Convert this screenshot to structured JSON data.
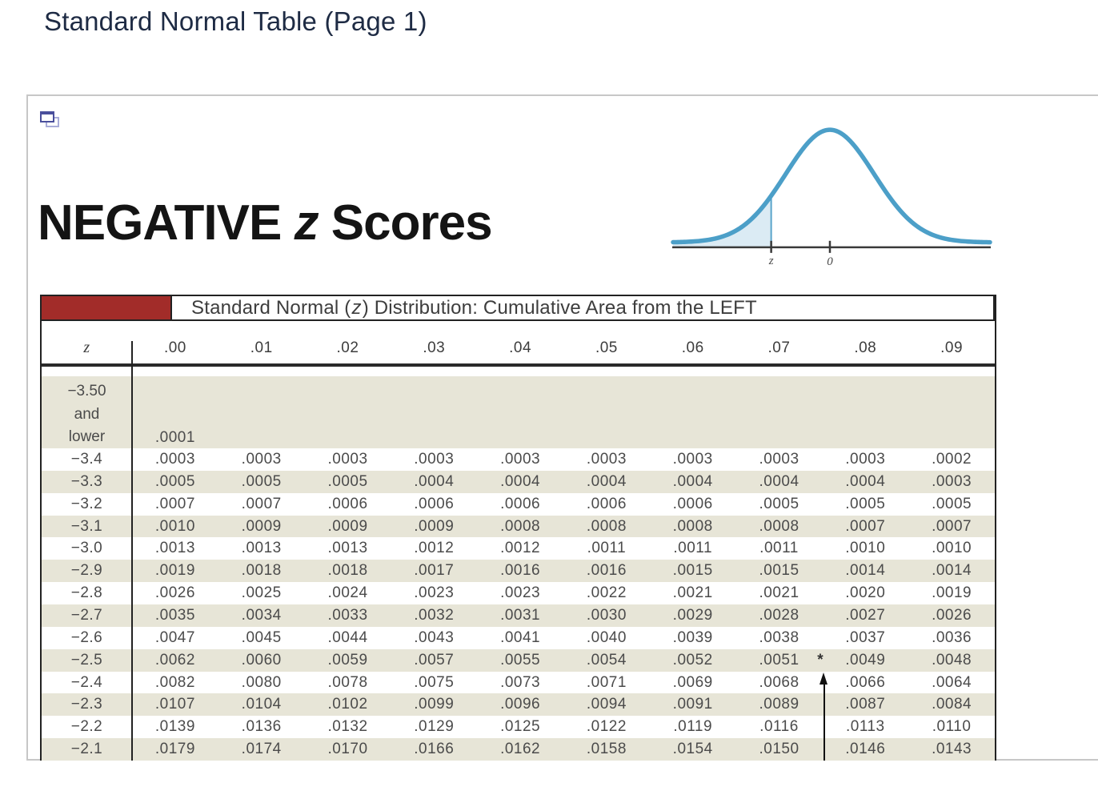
{
  "page": {
    "title": "Standard Normal Table (Page 1)"
  },
  "panel": {
    "icon_name": "popout-windows-icon",
    "heading": {
      "pre": "NEGATIVE ",
      "z": "z",
      "post": " Scores"
    },
    "curve": {
      "z_label": "z",
      "zero_label": "0",
      "curve_color": "#4C9FC8",
      "fill_color": "#DBEBF4",
      "axis_color": "#3a3a3a"
    },
    "table": {
      "title": {
        "pre": "Standard Normal (",
        "z": "z",
        "post": ") Distribution: Cumulative Area from the LEFT"
      },
      "corner_color": "#A22C29",
      "stripe_color": "#E7E5D7",
      "columns": [
        "z",
        ".00",
        ".01",
        ".02",
        ".03",
        ".04",
        ".05",
        ".06",
        ".07",
        ".08",
        ".09"
      ],
      "first_row": {
        "z_lines": [
          "−3.50",
          "and",
          "lower"
        ],
        "first_value": ".0001"
      },
      "rows": [
        {
          "z": "−3.4",
          "values": [
            ".0003",
            ".0003",
            ".0003",
            ".0003",
            ".0003",
            ".0003",
            ".0003",
            ".0003",
            ".0003",
            ".0002"
          ]
        },
        {
          "z": "−3.3",
          "values": [
            ".0005",
            ".0005",
            ".0005",
            ".0004",
            ".0004",
            ".0004",
            ".0004",
            ".0004",
            ".0004",
            ".0003"
          ]
        },
        {
          "z": "−3.2",
          "values": [
            ".0007",
            ".0007",
            ".0006",
            ".0006",
            ".0006",
            ".0006",
            ".0006",
            ".0005",
            ".0005",
            ".0005"
          ]
        },
        {
          "z": "−3.1",
          "values": [
            ".0010",
            ".0009",
            ".0009",
            ".0009",
            ".0008",
            ".0008",
            ".0008",
            ".0008",
            ".0007",
            ".0007"
          ]
        },
        {
          "z": "−3.0",
          "values": [
            ".0013",
            ".0013",
            ".0013",
            ".0012",
            ".0012",
            ".0011",
            ".0011",
            ".0011",
            ".0010",
            ".0010"
          ]
        },
        {
          "z": "−2.9",
          "values": [
            ".0019",
            ".0018",
            ".0018",
            ".0017",
            ".0016",
            ".0016",
            ".0015",
            ".0015",
            ".0014",
            ".0014"
          ]
        },
        {
          "z": "−2.8",
          "values": [
            ".0026",
            ".0025",
            ".0024",
            ".0023",
            ".0023",
            ".0022",
            ".0021",
            ".0021",
            ".0020",
            ".0019"
          ]
        },
        {
          "z": "−2.7",
          "values": [
            ".0035",
            ".0034",
            ".0033",
            ".0032",
            ".0031",
            ".0030",
            ".0029",
            ".0028",
            ".0027",
            ".0026"
          ]
        },
        {
          "z": "−2.6",
          "values": [
            ".0047",
            ".0045",
            ".0044",
            ".0043",
            ".0041",
            ".0040",
            ".0039",
            ".0038",
            ".0037",
            ".0036"
          ]
        },
        {
          "z": "−2.5",
          "values": [
            ".0062",
            ".0060",
            ".0059",
            ".0057",
            ".0055",
            ".0054",
            ".0052",
            ".0051",
            ".0049",
            ".0048"
          ]
        },
        {
          "z": "−2.4",
          "values": [
            ".0082",
            ".0080",
            ".0078",
            ".0075",
            ".0073",
            ".0071",
            ".0069",
            ".0068",
            ".0066",
            ".0064"
          ]
        },
        {
          "z": "−2.3",
          "values": [
            ".0107",
            ".0104",
            ".0102",
            ".0099",
            ".0096",
            ".0094",
            ".0091",
            ".0089",
            ".0087",
            ".0084"
          ]
        },
        {
          "z": "−2.2",
          "values": [
            ".0139",
            ".0136",
            ".0132",
            ".0129",
            ".0125",
            ".0122",
            ".0119",
            ".0116",
            ".0113",
            ".0110"
          ]
        },
        {
          "z": "−2.1",
          "values": [
            ".0179",
            ".0174",
            ".0170",
            ".0166",
            ".0162",
            ".0158",
            ".0154",
            ".0150",
            ".0146",
            ".0143"
          ]
        }
      ],
      "asterisk_marker": "*"
    }
  }
}
